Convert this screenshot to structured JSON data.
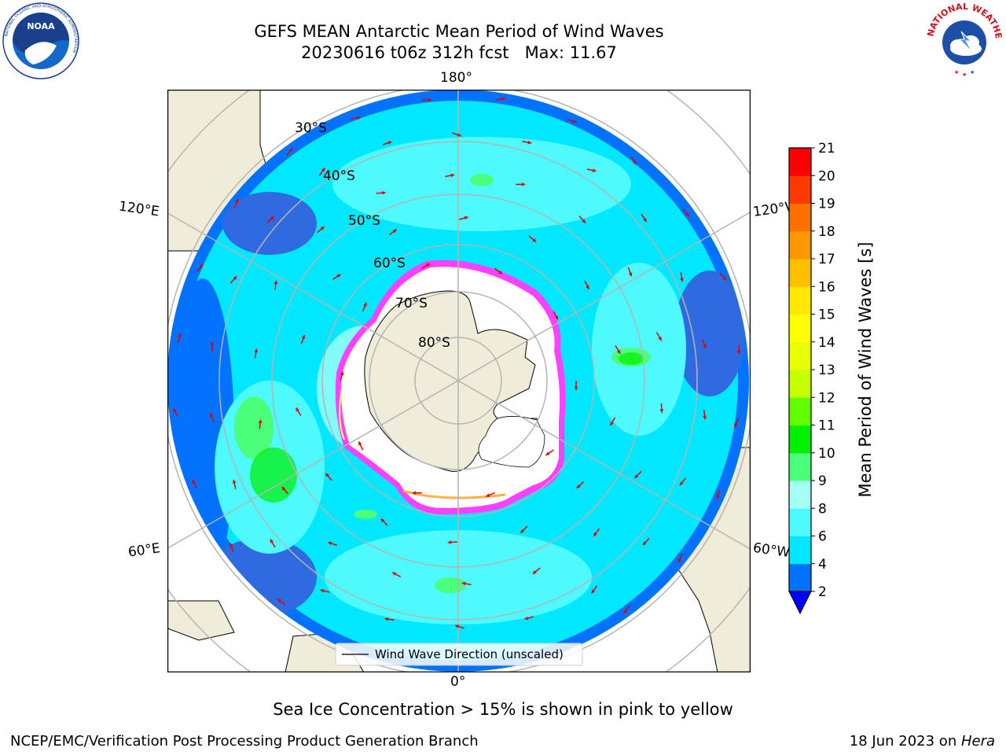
{
  "header": {
    "title_line1": "GEFS MEAN Antarctic Mean Period of Wind Waves",
    "title_line2": "20230616 t06z 312h fcst   Max: 11.67"
  },
  "logos": {
    "left": {
      "name": "NOAA",
      "ring_text": "NATIONAL OCEANIC AND ATMOSPHERIC ADMINISTRATION",
      "bottom_text": "U.S. DEPARTMENT OF COMMERCE"
    },
    "right": {
      "name": "National Weather Service",
      "ring_text": "NATIONAL WEATHER SERVICE"
    }
  },
  "map": {
    "projection": "south-polar-stereographic",
    "longitude_labels": {
      "top": "180°",
      "bottom": "0°",
      "upper_left": "120°E",
      "lower_left": "60°E",
      "upper_right": "120°W",
      "lower_right": "60°W"
    },
    "latitude_labels": [
      "30°S",
      "40°S",
      "50°S",
      "60°S",
      "70°S",
      "80°S"
    ],
    "legend_label": "Wind Wave Direction (unscaled)",
    "arrow_color": "#e00000",
    "land_color": "#efedda",
    "ice_color": "#ffffff",
    "ice_edge_colors": [
      "#ff40ff",
      "#ffb040",
      "#ffff60"
    ],
    "grid_color": "#b4b4b4"
  },
  "colorbar": {
    "label": "Mean Period of Wind Waves [s]",
    "ticks": [
      "2",
      "4",
      "6",
      "8",
      "9",
      "10",
      "11",
      "12",
      "13",
      "14",
      "15",
      "16",
      "17",
      "18",
      "19",
      "20",
      "21"
    ],
    "extend": "min",
    "under_color": "#0000ff",
    "colors": [
      "#0072ff",
      "#00e8ff",
      "#4ffaff",
      "#a4fff5",
      "#4cff7a",
      "#00f000",
      "#62ff00",
      "#c5ff00",
      "#e8ff00",
      "#ffff00",
      "#ffe800",
      "#ffc000",
      "#ff9800",
      "#ff7000",
      "#ff3800",
      "#ff0000"
    ]
  },
  "caption": "Sea Ice Concentration > 15% is shown in pink to yellow",
  "footer": {
    "left": "NCEP/EMC/Verification Post Processing Product Generation Branch",
    "right_prefix": "18 Jun 2023 on ",
    "right_machine": "Hera"
  }
}
